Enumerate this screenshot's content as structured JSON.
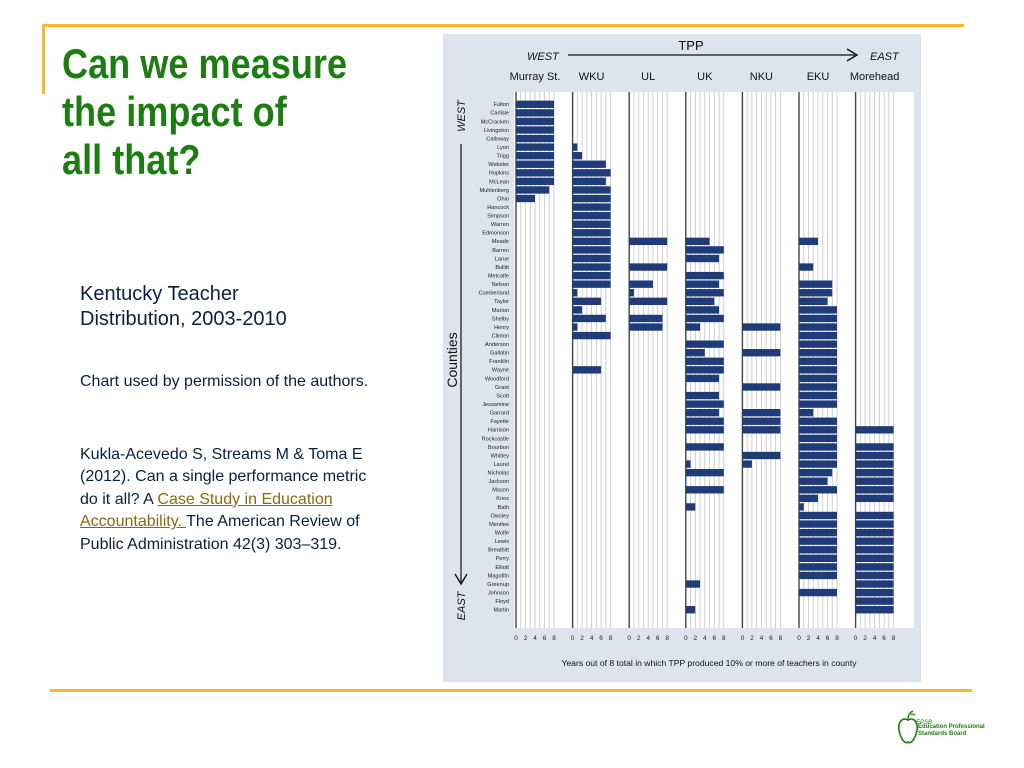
{
  "slide": {
    "title_lines": [
      "Can we measure",
      "the impact of",
      "all that?"
    ],
    "subtitle_lines": [
      "Kentucky Teacher",
      "Distribution, 2003-2010"
    ],
    "permission": "Chart used by permission of the authors.",
    "citation_before": "Kukla-Acevedo S, Streams M & Toma E (2012).  Can a single performance metric do it all? A ",
    "citation_link": "Case Study in Education Accountability. ",
    "citation_after": "The American Review of Public Administration 42(3) 303–319.",
    "logo_abbr": "EPSB",
    "logo_text": "Education Professional Standards Board"
  },
  "colors": {
    "bar": "#1f3c78",
    "title": "#1e7d12",
    "rule": "#f5b82e",
    "chart_bg": "#dde4ee"
  },
  "chart_data": {
    "type": "bar",
    "title": "TPP",
    "direction_left": "WEST",
    "direction_right": "EAST",
    "y_title": "Counties",
    "y_west": "WEST",
    "y_east": "EAST",
    "xlabel": "Years out of 8 total in which TPP produced 10% or more of teachers in county",
    "x_ticks": [
      0,
      2,
      4,
      6,
      8
    ],
    "xlim": [
      0,
      8
    ],
    "counties": [
      "Fulton",
      "Carlisle",
      "McCracken",
      "Livingston",
      "Calloway",
      "Lyon",
      "Trigg",
      "Webster",
      "Hopkins",
      "McLean",
      "Muhlenberg",
      "Ohio",
      "Hancock",
      "Simpson",
      "Warren",
      "Edmonson",
      "Meade",
      "Barren",
      "Larue",
      "Bullitt",
      "Metcalfe",
      "Nelson",
      "Cumberland",
      "Taylor",
      "Marion",
      "Shelby",
      "Henry",
      "Clinton",
      "Anderson",
      "Gallatin",
      "Franklin",
      "Wayne",
      "Woodford",
      "Grant",
      "Scott",
      "Jessamine",
      "Garrard",
      "Fayette",
      "Harrison",
      "Rockcastle",
      "Bourbon",
      "Whitley",
      "Laurel",
      "Nicholas",
      "Jackson",
      "Mason",
      "Knox",
      "Bath",
      "Owsley",
      "Menifee",
      "Wolfe",
      "Lewis",
      "Breathitt",
      "Perry",
      "Elliott",
      "Magoffin",
      "Greenup",
      "Johnson",
      "Floyd",
      "Martin"
    ],
    "series": [
      {
        "name": "Murray St.",
        "values": [
          8,
          8,
          8,
          8,
          8,
          8,
          8,
          8,
          8,
          8,
          7,
          4,
          0,
          0,
          0,
          0,
          0,
          0,
          0,
          0,
          0,
          0,
          0,
          0,
          0,
          0,
          0,
          0,
          0,
          0,
          0,
          0,
          0,
          0,
          0,
          0,
          0,
          0,
          0,
          0,
          0,
          0,
          0,
          0,
          0,
          0,
          0,
          0,
          0,
          0,
          0,
          0,
          0,
          0,
          0,
          0,
          0,
          0,
          0,
          0
        ]
      },
      {
        "name": "WKU",
        "values": [
          0,
          0,
          0,
          0,
          0,
          1,
          2,
          7,
          8,
          7,
          8,
          8,
          8,
          8,
          8,
          8,
          8,
          8,
          8,
          8,
          8,
          8,
          1,
          6,
          2,
          7,
          1,
          8,
          0,
          0,
          0,
          6,
          0,
          0,
          0,
          0,
          0,
          0,
          0,
          0,
          0,
          0,
          0,
          0,
          0,
          0,
          0,
          0,
          0,
          0,
          0,
          0,
          0,
          0,
          0,
          0,
          0,
          0,
          0,
          0
        ]
      },
      {
        "name": "UL",
        "values": [
          0,
          0,
          0,
          0,
          0,
          0,
          0,
          0,
          0,
          0,
          0,
          0,
          0,
          0,
          0,
          0,
          8,
          0,
          0,
          8,
          0,
          5,
          1,
          8,
          0,
          7,
          7,
          0,
          0,
          0,
          0,
          0,
          0,
          0,
          0,
          0,
          0,
          0,
          0,
          0,
          0,
          0,
          0,
          0,
          0,
          0,
          0,
          0,
          0,
          0,
          0,
          0,
          0,
          0,
          0,
          0,
          0,
          0,
          0,
          0
        ]
      },
      {
        "name": "UK",
        "values": [
          0,
          0,
          0,
          0,
          0,
          0,
          0,
          0,
          0,
          0,
          0,
          0,
          0,
          0,
          0,
          0,
          5,
          8,
          7,
          0,
          8,
          7,
          8,
          6,
          7,
          8,
          3,
          0,
          8,
          4,
          8,
          8,
          7,
          0,
          7,
          8,
          7,
          8,
          8,
          0,
          8,
          0,
          1,
          8,
          0,
          8,
          0,
          2,
          0,
          0,
          0,
          0,
          0,
          0,
          0,
          0,
          3,
          0,
          0,
          2
        ]
      },
      {
        "name": "NKU",
        "values": [
          0,
          0,
          0,
          0,
          0,
          0,
          0,
          0,
          0,
          0,
          0,
          0,
          0,
          0,
          0,
          0,
          0,
          0,
          0,
          0,
          0,
          0,
          0,
          0,
          0,
          0,
          8,
          0,
          0,
          8,
          0,
          0,
          0,
          8,
          0,
          0,
          8,
          8,
          8,
          0,
          0,
          8,
          2,
          0,
          0,
          0,
          0,
          0,
          0,
          0,
          0,
          0,
          0,
          0,
          0,
          0,
          0,
          0,
          0,
          0
        ]
      },
      {
        "name": "EKU",
        "values": [
          0,
          0,
          0,
          0,
          0,
          0,
          0,
          0,
          0,
          0,
          0,
          0,
          0,
          0,
          0,
          0,
          4,
          0,
          0,
          3,
          0,
          7,
          7,
          6,
          8,
          8,
          8,
          8,
          8,
          8,
          8,
          8,
          8,
          8,
          8,
          8,
          3,
          8,
          8,
          8,
          8,
          8,
          8,
          7,
          6,
          8,
          4,
          1,
          8,
          8,
          8,
          8,
          8,
          8,
          8,
          8,
          0,
          8,
          0,
          0
        ]
      },
      {
        "name": "Morehead",
        "values": [
          0,
          0,
          0,
          0,
          0,
          0,
          0,
          0,
          0,
          0,
          0,
          0,
          0,
          0,
          0,
          0,
          0,
          0,
          0,
          0,
          0,
          0,
          0,
          0,
          0,
          0,
          0,
          0,
          0,
          0,
          0,
          0,
          0,
          0,
          0,
          0,
          0,
          0,
          8,
          0,
          8,
          8,
          8,
          8,
          8,
          8,
          8,
          0,
          8,
          8,
          8,
          8,
          8,
          8,
          8,
          8,
          8,
          8,
          8,
          8
        ]
      }
    ]
  }
}
